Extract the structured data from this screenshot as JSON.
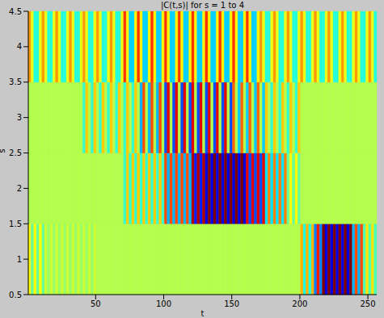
{
  "chart_data": {
    "type": "heatmap",
    "title": "|C(t,s)| for s = 1 to 4",
    "xlabel": "t",
    "ylabel": "s",
    "x": [
      1.5,
      3.5,
      5.5,
      7.5,
      9.5,
      11.5,
      13.5,
      15.5,
      17.5,
      19.5,
      21.5,
      23.5,
      25.5,
      27.5,
      29.5,
      31.5,
      33.5,
      35.5,
      37.5,
      39.5,
      41.5,
      43.5,
      45.5,
      47.5,
      49.5,
      51.5,
      53.5,
      55.5,
      57.5,
      59.5,
      61.5,
      63.5,
      65.5,
      67.5,
      69.5,
      71.5,
      73.5,
      75.5,
      77.5,
      79.5,
      81.5,
      83.5,
      85.5,
      87.5,
      89.5,
      91.5,
      93.5,
      95.5,
      97.5,
      99.5,
      101.5,
      103.5,
      105.5,
      107.5,
      109.5,
      111.5,
      113.5,
      115.5,
      117.5,
      119.5,
      121.5,
      123.5,
      125.5,
      127.5,
      129.5,
      131.5,
      133.5,
      135.5,
      137.5,
      139.5,
      141.5,
      143.5,
      145.5,
      147.5,
      149.5,
      151.5,
      153.5,
      155.5,
      157.5,
      159.5,
      161.5,
      163.5,
      165.5,
      167.5,
      169.5,
      171.5,
      173.5,
      175.5,
      177.5,
      179.5,
      181.5,
      183.5,
      185.5,
      187.5,
      189.5,
      191.5,
      193.5,
      195.5,
      197.5,
      199.5,
      201.5,
      203.5,
      205.5,
      207.5,
      209.5,
      211.5,
      213.5,
      215.5,
      217.5,
      219.5,
      221.5,
      223.5,
      225.5,
      227.5,
      229.5,
      231.5,
      233.5,
      235.5,
      237.5,
      239.5,
      241.5,
      243.5,
      245.5,
      247.5,
      249.5,
      251.5,
      253.5,
      255.5
    ],
    "y": [
      1,
      2,
      3,
      4
    ],
    "cells": [
      [
        0.25,
        -0.05,
        0.25,
        -0.05,
        0.25,
        -0.05,
        0.15,
        0.05,
        0.15,
        0.05,
        0.15,
        0.05,
        0.15,
        0.05,
        0.15,
        0.05,
        0.15,
        0.05,
        0.15,
        0.05,
        0.15,
        0.05,
        0.15,
        0.05,
        0.15,
        0.1,
        0.1,
        0.1,
        0.1,
        0.1,
        0.1,
        0.1,
        0.1,
        0.1,
        0.1,
        0.1,
        0.1,
        0.1,
        0.1,
        0.1,
        0.1,
        0.1,
        0.1,
        0.1,
        0.1,
        0.1,
        0.1,
        0.1,
        0.1,
        0.1,
        0.1,
        0.1,
        0.1,
        0.1,
        0.1,
        0.1,
        0.1,
        0.1,
        0.1,
        0.1,
        0.1,
        0.1,
        0.1,
        0.1,
        0.1,
        0.1,
        0.1,
        0.1,
        0.1,
        0.1,
        0.1,
        0.1,
        0.1,
        0.1,
        0.1,
        0.1,
        0.1,
        0.1,
        0.1,
        0.1,
        0.1,
        0.1,
        0.1,
        0.1,
        0.1,
        0.1,
        0.1,
        0.1,
        0.1,
        0.1,
        0.1,
        0.1,
        0.1,
        0.1,
        0.1,
        0.1,
        0.1,
        0.1,
        0.1,
        0.1,
        0.4,
        -0.2,
        0.4,
        -0.2,
        0.4,
        -0.5,
        0.7,
        -0.5,
        1.0,
        -0.8,
        1.0,
        -0.8,
        1.0,
        -0.8,
        1.0,
        -0.8,
        1.0,
        -0.8,
        1.0,
        -0.4,
        0.6,
        -0.4,
        0.6,
        -0.1,
        0.3,
        -0.1,
        0.3,
        -0.1
      ],
      [
        0.1,
        0.1,
        0.1,
        0.1,
        0.1,
        0.1,
        0.1,
        0.1,
        0.1,
        0.1,
        0.1,
        0.1,
        0.1,
        0.1,
        0.1,
        0.1,
        0.1,
        0.1,
        0.1,
        0.1,
        0.1,
        0.1,
        0.1,
        0.1,
        0.1,
        0.1,
        0.1,
        0.1,
        0.1,
        0.1,
        0.1,
        0.1,
        0.1,
        0.1,
        0.1,
        -0.15,
        0.35,
        -0.15,
        0.35,
        -0.15,
        0.35,
        -0.15,
        0.35,
        -0.15,
        0.35,
        -0.15,
        0.35,
        -0.15,
        0.35,
        -0.15,
        0.6,
        -0.4,
        0.6,
        -0.4,
        0.6,
        -0.4,
        0.6,
        -0.4,
        0.6,
        -0.4,
        0.9,
        -0.7,
        0.9,
        -0.7,
        0.9,
        -0.8,
        1.0,
        -0.8,
        1.0,
        -0.8,
        1.0,
        -0.8,
        1.0,
        -0.8,
        1.0,
        -0.8,
        1.0,
        -0.8,
        1.0,
        -0.8,
        0.8,
        -0.6,
        0.8,
        -0.6,
        0.8,
        -0.6,
        0.8,
        -0.3,
        0.5,
        -0.3,
        0.5,
        -0.3,
        0.5,
        -0.3,
        0.5,
        -0.05,
        0.25,
        -0.05,
        0.25,
        -0.05,
        0.1,
        0.1,
        0.1,
        0.1,
        0.1,
        0.1,
        0.1,
        0.1,
        0.1,
        0.1,
        0.1,
        0.1,
        0.1,
        0.1,
        0.1,
        0.1,
        0.1,
        0.1,
        0.1,
        0.1,
        0.1,
        0.1,
        0.1,
        0.1,
        0.1,
        0.1,
        0.1,
        0.1
      ],
      [
        0.1,
        0.1,
        0.1,
        0.1,
        0.1,
        0.1,
        0.1,
        0.1,
        0.1,
        0.1,
        0.1,
        0.1,
        0.1,
        0.1,
        0.1,
        0.1,
        0.1,
        0.1,
        0.1,
        0.1,
        -0.15,
        0.35,
        0.1,
        -0.15,
        0.35,
        0.1,
        -0.15,
        0.35,
        0.1,
        -0.15,
        0.35,
        0.1,
        -0.15,
        0.35,
        0.1,
        -0.15,
        0.35,
        0.1,
        -0.15,
        0.35,
        0.1,
        -0.4,
        0.6,
        0.1,
        -0.4,
        0.6,
        0.1,
        -0.4,
        0.6,
        0.1,
        -0.6,
        0.8,
        0.1,
        -0.6,
        0.8,
        0.1,
        -0.6,
        0.8,
        0.1,
        -0.6,
        0.8,
        0.1,
        -0.6,
        0.8,
        0.1,
        -0.6,
        0.8,
        0.1,
        -0.6,
        0.8,
        0.1,
        -0.6,
        0.8,
        0.1,
        -0.6,
        0.55,
        0.1,
        -0.35,
        0.55,
        0.1,
        -0.35,
        0.55,
        0.1,
        -0.35,
        0.55,
        0.1,
        -0.35,
        0.35,
        0.1,
        -0.15,
        0.35,
        0.1,
        -0.15,
        0.35,
        0.1,
        -0.15,
        0.35,
        0.1,
        -0.15,
        0.35,
        0.1,
        0.1,
        0.1,
        0.1,
        0.1,
        0.1,
        0.1,
        0.1,
        0.1,
        0.1,
        0.1,
        0.1,
        0.1,
        0.1,
        0.1,
        0.1,
        0.1,
        0.1,
        0.1,
        0.1,
        0.1,
        0.1,
        0.1,
        0.1,
        0.1,
        0.1,
        0.1,
        0.1
      ],
      [
        0.45,
        0.21,
        -0.18,
        -0.18,
        0.21,
        0.45,
        0.21,
        -0.18,
        -0.18,
        0.21,
        0.45,
        0.21,
        -0.18,
        -0.18,
        0.21,
        0.45,
        0.21,
        -0.18,
        -0.18,
        0.21,
        0.45,
        0.21,
        -0.18,
        -0.18,
        0.21,
        0.45,
        0.21,
        -0.18,
        -0.18,
        0.21,
        0.45,
        0.21,
        -0.18,
        -0.18,
        0.21,
        0.65,
        0.27,
        -0.34,
        -0.34,
        0.27,
        0.65,
        0.27,
        -0.34,
        -0.34,
        0.27,
        0.65,
        0.27,
        -0.34,
        -0.34,
        0.27,
        0.65,
        0.27,
        -0.34,
        -0.34,
        0.27,
        0.65,
        0.27,
        -0.34,
        -0.34,
        0.27,
        0.65,
        0.27,
        -0.34,
        -0.34,
        0.27,
        0.65,
        0.27,
        -0.34,
        -0.34,
        0.27,
        0.65,
        0.27,
        -0.34,
        -0.34,
        0.27,
        0.65,
        0.27,
        -0.34,
        -0.34,
        0.27,
        0.65,
        0.27,
        -0.34,
        -0.34,
        0.27,
        0.45,
        0.21,
        -0.18,
        -0.18,
        0.21,
        0.45,
        0.21,
        -0.18,
        -0.18,
        0.21,
        0.45,
        0.21,
        -0.18,
        -0.18,
        0.21,
        0.45,
        0.21,
        -0.18,
        -0.18,
        0.21,
        0.45,
        0.21,
        -0.18,
        -0.18,
        0.21,
        0.45,
        0.21,
        -0.18,
        -0.18,
        0.21,
        0.45,
        0.21,
        -0.18,
        -0.18,
        0.21,
        0.45,
        0.21,
        -0.18,
        -0.18,
        0.21,
        0.45,
        0.21,
        -0.18
      ]
    ],
    "color_range": [
      -1,
      1
    ],
    "xlim": [
      0.5,
      256.5
    ],
    "xticks": [
      50,
      100,
      150,
      200,
      250
    ],
    "ylim": [
      0.5,
      4.5
    ],
    "yticks": [
      0.5,
      1,
      1.5,
      2,
      2.5,
      3,
      3.5,
      4,
      4.5
    ]
  }
}
